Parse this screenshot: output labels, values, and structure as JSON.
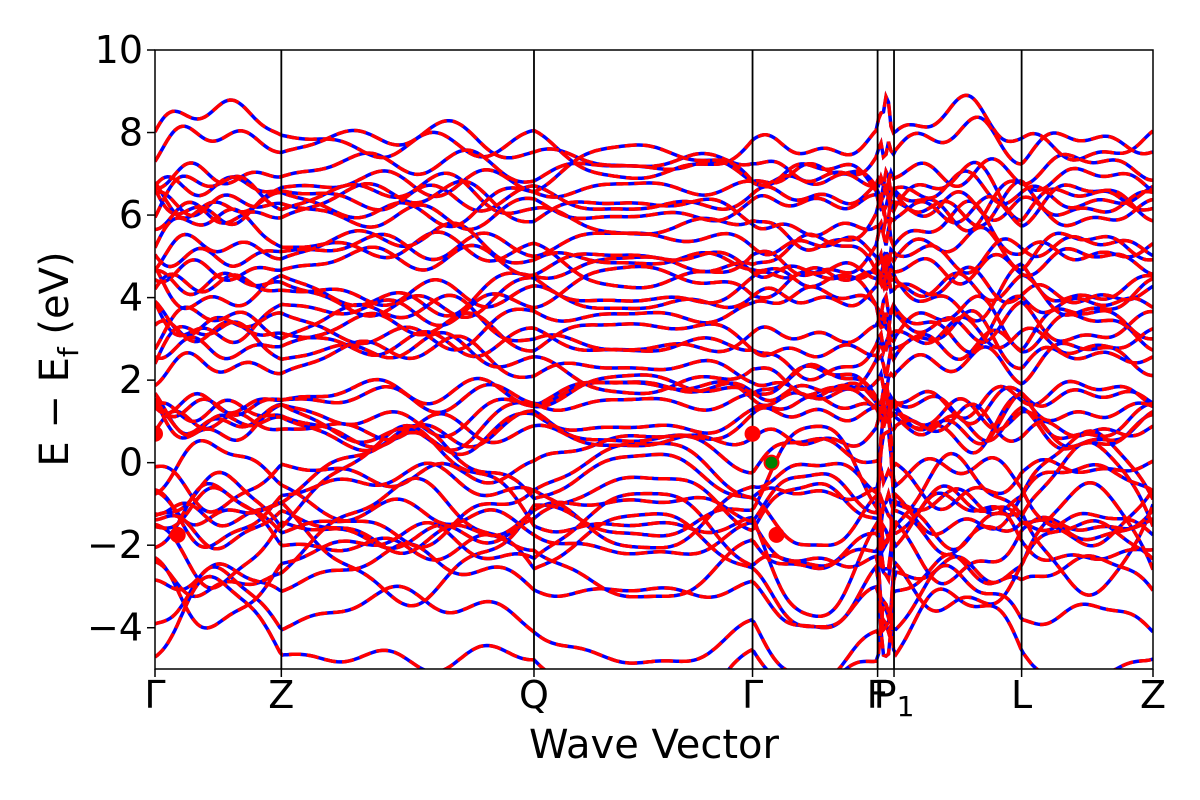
{
  "chart_data": {
    "type": "line",
    "xlabel": "Wave Vector",
    "ylabel": "E  −  E",
    "ylabel_subscript": "f",
    "ylabel_unit": "(eV)",
    "ylim": [
      -5,
      10
    ],
    "yticks": [
      -4,
      -2,
      0,
      2,
      4,
      6,
      8,
      10
    ],
    "ytick_labels": [
      "−4",
      "−2",
      "0",
      "2",
      "4",
      "6",
      "8",
      "10"
    ],
    "xlim": [
      0,
      7.9
    ],
    "kpoints": [
      {
        "label": "Γ",
        "x": 0.0
      },
      {
        "label": "Z",
        "x": 1.0
      },
      {
        "label": "Q",
        "x": 3.0
      },
      {
        "label": "Γ",
        "x": 4.73
      },
      {
        "label": "F",
        "x": 5.72
      },
      {
        "label": "P",
        "sub": "1",
        "x": 5.85
      },
      {
        "label": "L",
        "x": 6.86
      },
      {
        "label": "Z",
        "x": 7.9
      }
    ],
    "series_colors": {
      "blue": "#0000ff",
      "red": "#ff0000",
      "marker_green": "#008000"
    },
    "markers": [
      {
        "x": 0.0,
        "y": 0.7,
        "color": "#ff0000"
      },
      {
        "x": 4.73,
        "y": 0.7,
        "color": "#ff0000"
      },
      {
        "x": 4.88,
        "y": 0.0,
        "color": "#008000"
      },
      {
        "x": 0.18,
        "y": -1.75,
        "color": "#ff0000"
      },
      {
        "x": 4.92,
        "y": -1.75,
        "color": "#ff0000"
      }
    ],
    "valence_bands_at_gamma": [
      -0.1,
      -0.85,
      -1.0,
      -1.55,
      -1.65,
      -1.95
    ],
    "valence_bands_at_z": [
      -0.5,
      -0.95,
      -1.2,
      -1.5,
      -2.5,
      -2.7,
      -3.1,
      -4.0,
      -4.6
    ],
    "conduction_bands_at_gamma": [
      0.75,
      1.05,
      1.4,
      1.6,
      2.9,
      3.0,
      4.1,
      4.3,
      4.55,
      5.2,
      6.0,
      6.1,
      6.5
    ],
    "conduction_bands_at_z": [
      1.05,
      1.45,
      1.6,
      2.2,
      2.45,
      3.05,
      3.6,
      3.9,
      4.75,
      4.95,
      5.15,
      6.2,
      6.55,
      6.75,
      7.0,
      7.5,
      7.85
    ]
  }
}
